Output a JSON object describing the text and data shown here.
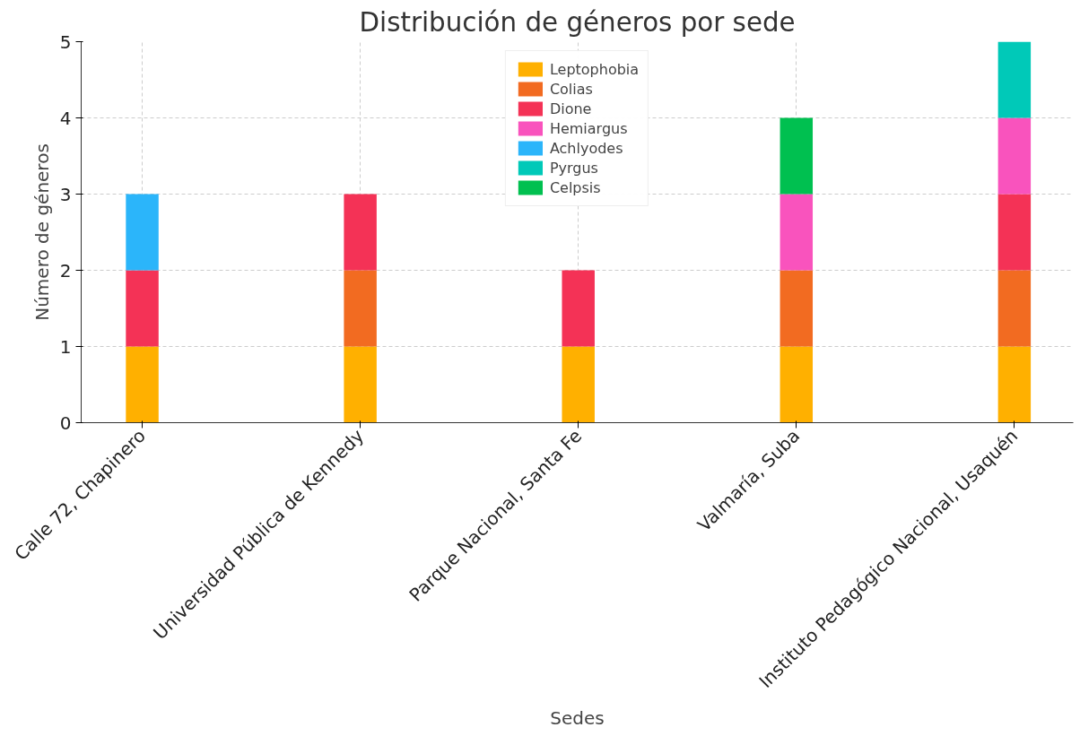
{
  "chart_data": {
    "type": "bar",
    "stacked": true,
    "title": "Distribución de géneros por sede",
    "xlabel": "Sedes",
    "ylabel": "Número de géneros",
    "categories": [
      "Calle 72, Chapinero",
      "Universidad Pública de Kennedy",
      "Parque Nacional, Santa Fe",
      "Valmaría, Suba",
      "Instituto Pedagógico Nacional, Usaquén"
    ],
    "series": [
      {
        "name": "Leptophobia",
        "color": "#ffb000",
        "values": [
          1,
          1,
          1,
          1,
          1
        ]
      },
      {
        "name": "Colias",
        "color": "#f26b21",
        "values": [
          null,
          1,
          null,
          1,
          1
        ]
      },
      {
        "name": "Dione",
        "color": "#f43256",
        "values": [
          1,
          1,
          1,
          null,
          1
        ]
      },
      {
        "name": "Hemiargus",
        "color": "#f953bd",
        "values": [
          null,
          null,
          null,
          1,
          1
        ]
      },
      {
        "name": "Achlyodes",
        "color": "#2bb5fa",
        "values": [
          1,
          null,
          null,
          null,
          null
        ]
      },
      {
        "name": "Pyrgus",
        "color": "#00c9b8",
        "values": [
          null,
          null,
          null,
          null,
          1
        ]
      },
      {
        "name": "Celpsis",
        "color": "#00c050",
        "values": [
          null,
          null,
          null,
          1,
          null
        ]
      }
    ],
    "ylim": [
      0,
      5
    ],
    "yticks": [
      0,
      1,
      2,
      3,
      4,
      5
    ],
    "grid": true,
    "legend": "top"
  }
}
